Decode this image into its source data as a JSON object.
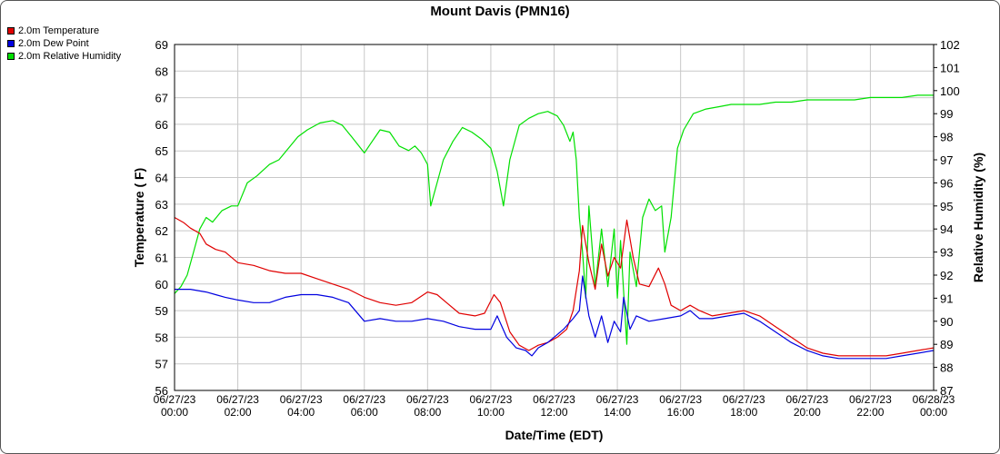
{
  "chart_data": {
    "type": "line",
    "title": "Mount Davis (PMN16)",
    "xlabel": "Date/Time (EDT)",
    "ylabel": "Temperature ( F)",
    "y2label": "Relative Humidity (%)",
    "ylim": [
      56,
      69
    ],
    "y2lim": [
      87,
      102
    ],
    "x_ticks": [
      {
        "hour": 0,
        "date": "06/27/23",
        "time": "00:00"
      },
      {
        "hour": 2,
        "date": "06/27/23",
        "time": "02:00"
      },
      {
        "hour": 4,
        "date": "06/27/23",
        "time": "04:00"
      },
      {
        "hour": 6,
        "date": "06/27/23",
        "time": "06:00"
      },
      {
        "hour": 8,
        "date": "06/27/23",
        "time": "08:00"
      },
      {
        "hour": 10,
        "date": "06/27/23",
        "time": "10:00"
      },
      {
        "hour": 12,
        "date": "06/27/23",
        "time": "12:00"
      },
      {
        "hour": 14,
        "date": "06/27/23",
        "time": "14:00"
      },
      {
        "hour": 16,
        "date": "06/27/23",
        "time": "16:00"
      },
      {
        "hour": 18,
        "date": "06/27/23",
        "time": "18:00"
      },
      {
        "hour": 20,
        "date": "06/27/23",
        "time": "20:00"
      },
      {
        "hour": 22,
        "date": "06/27/23",
        "time": "22:00"
      },
      {
        "hour": 24,
        "date": "06/28/23",
        "time": "00:00"
      }
    ],
    "y_ticks": [
      56,
      57,
      58,
      59,
      60,
      61,
      62,
      63,
      64,
      65,
      66,
      67,
      68,
      69
    ],
    "y2_ticks": [
      87,
      88,
      89,
      90,
      91,
      92,
      93,
      94,
      95,
      96,
      97,
      98,
      99,
      100,
      101,
      102
    ],
    "grid": true,
    "legend_position": "top-left",
    "series": [
      {
        "name": "2.0m Temperature",
        "axis": "left",
        "color": "#e00000",
        "points": [
          [
            0,
            62.5
          ],
          [
            0.3,
            62.3
          ],
          [
            0.5,
            62.1
          ],
          [
            0.8,
            61.9
          ],
          [
            1.0,
            61.5
          ],
          [
            1.3,
            61.3
          ],
          [
            1.6,
            61.2
          ],
          [
            2.0,
            60.8
          ],
          [
            2.5,
            60.7
          ],
          [
            3.0,
            60.5
          ],
          [
            3.5,
            60.4
          ],
          [
            4.0,
            60.4
          ],
          [
            4.5,
            60.2
          ],
          [
            5.0,
            60.0
          ],
          [
            5.5,
            59.8
          ],
          [
            6.0,
            59.5
          ],
          [
            6.5,
            59.3
          ],
          [
            7.0,
            59.2
          ],
          [
            7.5,
            59.3
          ],
          [
            8.0,
            59.7
          ],
          [
            8.3,
            59.6
          ],
          [
            8.6,
            59.3
          ],
          [
            9.0,
            58.9
          ],
          [
            9.5,
            58.8
          ],
          [
            9.8,
            58.9
          ],
          [
            10.1,
            59.6
          ],
          [
            10.3,
            59.3
          ],
          [
            10.6,
            58.2
          ],
          [
            10.9,
            57.7
          ],
          [
            11.2,
            57.5
          ],
          [
            11.5,
            57.7
          ],
          [
            11.8,
            57.8
          ],
          [
            12.1,
            58.0
          ],
          [
            12.4,
            58.3
          ],
          [
            12.6,
            59.0
          ],
          [
            12.8,
            60.5
          ],
          [
            12.9,
            62.2
          ],
          [
            13.1,
            60.8
          ],
          [
            13.3,
            59.8
          ],
          [
            13.5,
            61.5
          ],
          [
            13.7,
            60.3
          ],
          [
            13.9,
            61.0
          ],
          [
            14.1,
            60.6
          ],
          [
            14.3,
            62.4
          ],
          [
            14.5,
            61.0
          ],
          [
            14.7,
            60.0
          ],
          [
            15.0,
            59.9
          ],
          [
            15.3,
            60.6
          ],
          [
            15.5,
            60.0
          ],
          [
            15.7,
            59.2
          ],
          [
            16.0,
            59.0
          ],
          [
            16.3,
            59.2
          ],
          [
            16.6,
            59.0
          ],
          [
            17.0,
            58.8
          ],
          [
            17.5,
            58.9
          ],
          [
            18.0,
            59.0
          ],
          [
            18.5,
            58.8
          ],
          [
            19.0,
            58.4
          ],
          [
            19.5,
            58.0
          ],
          [
            20.0,
            57.6
          ],
          [
            20.5,
            57.4
          ],
          [
            21.0,
            57.3
          ],
          [
            21.5,
            57.3
          ],
          [
            22.0,
            57.3
          ],
          [
            22.5,
            57.3
          ],
          [
            23.0,
            57.4
          ],
          [
            23.5,
            57.5
          ],
          [
            24.0,
            57.6
          ]
        ]
      },
      {
        "name": "2.0m Dew Point",
        "axis": "left",
        "color": "#0000e0",
        "points": [
          [
            0,
            59.8
          ],
          [
            0.5,
            59.8
          ],
          [
            1.0,
            59.7
          ],
          [
            1.3,
            59.6
          ],
          [
            1.6,
            59.5
          ],
          [
            2.0,
            59.4
          ],
          [
            2.5,
            59.3
          ],
          [
            3.0,
            59.3
          ],
          [
            3.5,
            59.5
          ],
          [
            4.0,
            59.6
          ],
          [
            4.5,
            59.6
          ],
          [
            5.0,
            59.5
          ],
          [
            5.5,
            59.3
          ],
          [
            6.0,
            58.6
          ],
          [
            6.5,
            58.7
          ],
          [
            7.0,
            58.6
          ],
          [
            7.5,
            58.6
          ],
          [
            8.0,
            58.7
          ],
          [
            8.5,
            58.6
          ],
          [
            9.0,
            58.4
          ],
          [
            9.5,
            58.3
          ],
          [
            10.0,
            58.3
          ],
          [
            10.2,
            58.8
          ],
          [
            10.5,
            58.0
          ],
          [
            10.8,
            57.6
          ],
          [
            11.1,
            57.5
          ],
          [
            11.3,
            57.3
          ],
          [
            11.5,
            57.6
          ],
          [
            11.8,
            57.8
          ],
          [
            12.0,
            58.0
          ],
          [
            12.3,
            58.3
          ],
          [
            12.6,
            58.7
          ],
          [
            12.8,
            59.0
          ],
          [
            12.9,
            60.3
          ],
          [
            13.1,
            58.8
          ],
          [
            13.3,
            58.0
          ],
          [
            13.5,
            58.8
          ],
          [
            13.7,
            57.8
          ],
          [
            13.9,
            58.6
          ],
          [
            14.1,
            58.2
          ],
          [
            14.2,
            59.5
          ],
          [
            14.4,
            58.3
          ],
          [
            14.6,
            58.8
          ],
          [
            15.0,
            58.6
          ],
          [
            15.5,
            58.7
          ],
          [
            16.0,
            58.8
          ],
          [
            16.3,
            59.0
          ],
          [
            16.6,
            58.7
          ],
          [
            17.0,
            58.7
          ],
          [
            17.5,
            58.8
          ],
          [
            18.0,
            58.9
          ],
          [
            18.5,
            58.6
          ],
          [
            19.0,
            58.2
          ],
          [
            19.5,
            57.8
          ],
          [
            20.0,
            57.5
          ],
          [
            20.5,
            57.3
          ],
          [
            21.0,
            57.2
          ],
          [
            21.5,
            57.2
          ],
          [
            22.0,
            57.2
          ],
          [
            22.5,
            57.2
          ],
          [
            23.0,
            57.3
          ],
          [
            23.5,
            57.4
          ],
          [
            24.0,
            57.5
          ]
        ]
      },
      {
        "name": "2.0m Relative Humidity",
        "axis": "right",
        "color": "#00e000",
        "points": [
          [
            0,
            91.2
          ],
          [
            0.2,
            91.5
          ],
          [
            0.4,
            92.0
          ],
          [
            0.6,
            93.0
          ],
          [
            0.8,
            94.0
          ],
          [
            1.0,
            94.5
          ],
          [
            1.2,
            94.3
          ],
          [
            1.5,
            94.8
          ],
          [
            1.8,
            95.0
          ],
          [
            2.0,
            95.0
          ],
          [
            2.3,
            96.0
          ],
          [
            2.6,
            96.3
          ],
          [
            3.0,
            96.8
          ],
          [
            3.3,
            97.0
          ],
          [
            3.6,
            97.5
          ],
          [
            3.9,
            98.0
          ],
          [
            4.2,
            98.3
          ],
          [
            4.6,
            98.6
          ],
          [
            5.0,
            98.7
          ],
          [
            5.3,
            98.5
          ],
          [
            5.6,
            98.0
          ],
          [
            6.0,
            97.3
          ],
          [
            6.2,
            97.7
          ],
          [
            6.5,
            98.3
          ],
          [
            6.8,
            98.2
          ],
          [
            7.1,
            97.6
          ],
          [
            7.4,
            97.4
          ],
          [
            7.6,
            97.6
          ],
          [
            7.8,
            97.3
          ],
          [
            8.0,
            96.8
          ],
          [
            8.1,
            95.0
          ],
          [
            8.3,
            96.0
          ],
          [
            8.5,
            97.0
          ],
          [
            8.8,
            97.8
          ],
          [
            9.1,
            98.4
          ],
          [
            9.4,
            98.2
          ],
          [
            9.7,
            97.9
          ],
          [
            10.0,
            97.5
          ],
          [
            10.2,
            96.5
          ],
          [
            10.4,
            95.0
          ],
          [
            10.6,
            97.0
          ],
          [
            10.9,
            98.5
          ],
          [
            11.2,
            98.8
          ],
          [
            11.5,
            99.0
          ],
          [
            11.8,
            99.1
          ],
          [
            12.1,
            98.9
          ],
          [
            12.3,
            98.5
          ],
          [
            12.5,
            97.8
          ],
          [
            12.6,
            98.2
          ],
          [
            12.7,
            97.0
          ],
          [
            12.8,
            94.5
          ],
          [
            12.9,
            93.0
          ],
          [
            13.0,
            91.0
          ],
          [
            13.1,
            95.0
          ],
          [
            13.3,
            91.5
          ],
          [
            13.5,
            94.0
          ],
          [
            13.7,
            91.5
          ],
          [
            13.9,
            94.0
          ],
          [
            14.0,
            91.0
          ],
          [
            14.1,
            93.5
          ],
          [
            14.3,
            89.0
          ],
          [
            14.4,
            93.0
          ],
          [
            14.6,
            91.5
          ],
          [
            14.8,
            94.5
          ],
          [
            15.0,
            95.3
          ],
          [
            15.2,
            94.8
          ],
          [
            15.4,
            95.0
          ],
          [
            15.5,
            93.0
          ],
          [
            15.7,
            94.5
          ],
          [
            15.9,
            97.5
          ],
          [
            16.1,
            98.3
          ],
          [
            16.4,
            99.0
          ],
          [
            16.8,
            99.2
          ],
          [
            17.2,
            99.3
          ],
          [
            17.6,
            99.4
          ],
          [
            18.0,
            99.4
          ],
          [
            18.5,
            99.4
          ],
          [
            19.0,
            99.5
          ],
          [
            19.5,
            99.5
          ],
          [
            20.0,
            99.6
          ],
          [
            20.5,
            99.6
          ],
          [
            21.0,
            99.6
          ],
          [
            21.5,
            99.6
          ],
          [
            22.0,
            99.7
          ],
          [
            22.5,
            99.7
          ],
          [
            23.0,
            99.7
          ],
          [
            23.5,
            99.8
          ],
          [
            24.0,
            99.8
          ]
        ]
      }
    ]
  }
}
